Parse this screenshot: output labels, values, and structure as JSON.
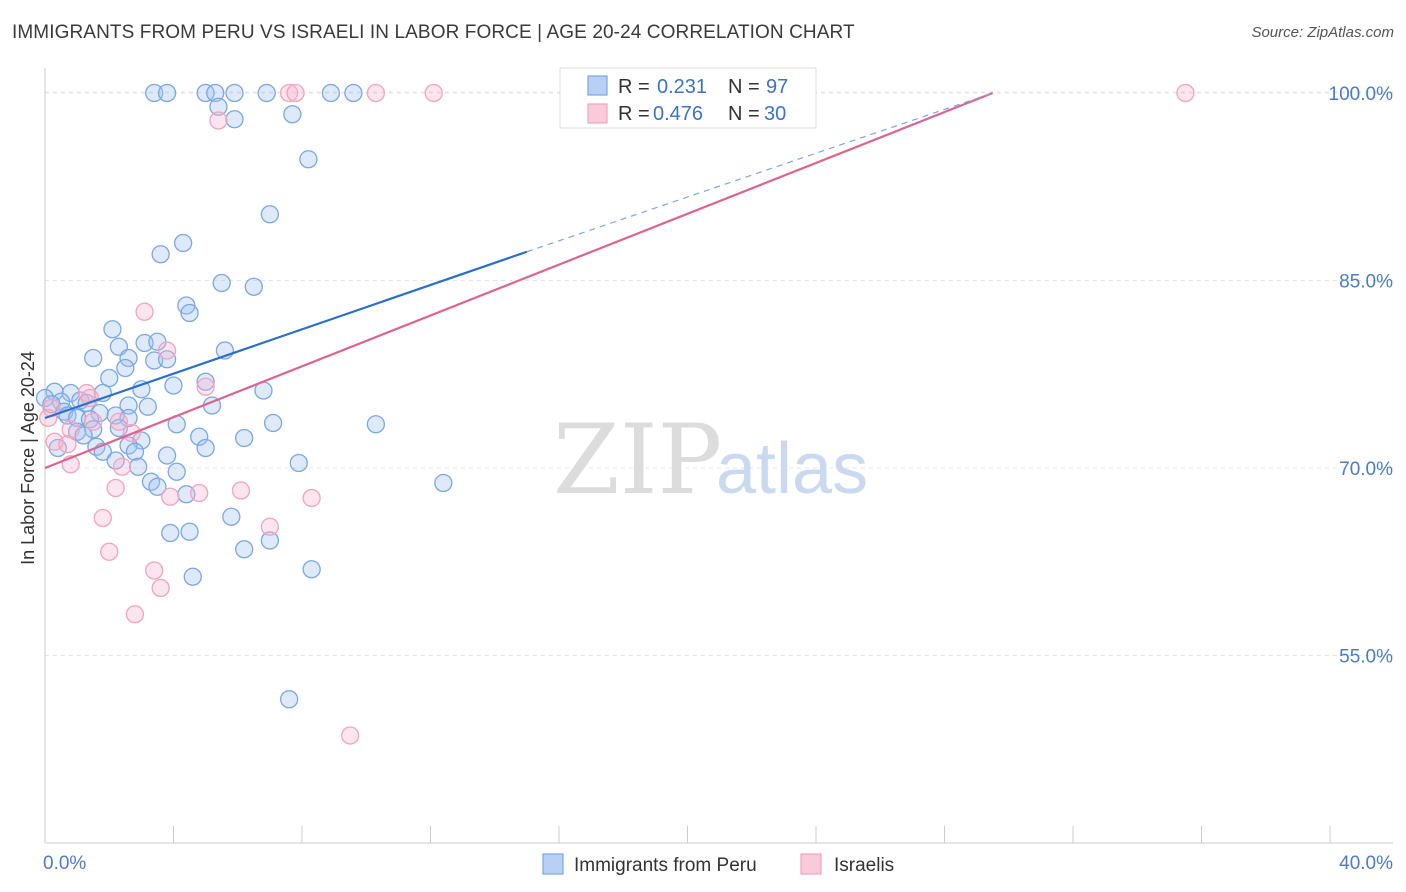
{
  "title": "IMMIGRANTS FROM PERU VS ISRAELI IN LABOR FORCE | AGE 20-24 CORRELATION CHART",
  "source": "Source: ZipAtlas.com",
  "chart_data": {
    "type": "scatter",
    "title": "IMMIGRANTS FROM PERU VS ISRAELI IN LABOR FORCE | AGE 20-24 CORRELATION CHART",
    "xlabel": "",
    "ylabel": "In Labor Force | Age 20-24",
    "xlim": [
      0,
      40
    ],
    "ylim": [
      40,
      102
    ],
    "x_tick_labels": [
      "0.0%",
      "40.0%"
    ],
    "y_ticks": [
      55,
      70,
      85,
      100
    ],
    "y_tick_labels": [
      "55.0%",
      "70.0%",
      "85.0%",
      "100.0%"
    ],
    "grid": true,
    "watermark": [
      "ZIP",
      "atlas"
    ],
    "legend": {
      "entries": [
        {
          "r_label": "R =",
          "r_value": "0.231",
          "n_label": "N =",
          "n_value": "97"
        },
        {
          "r_label": "R =",
          "r_value": "0.476",
          "n_label": "N =",
          "n_value": "30"
        }
      ]
    },
    "series": [
      {
        "name": "Immigrants from Peru",
        "color": "#7aa7e6",
        "line_color": "#2a6fcf",
        "trend": {
          "x0": 0.0,
          "y0": 74.0,
          "x1": 15.0,
          "y1": 87.3,
          "dash_x1": 29.5,
          "dash_y1": 100.0
        },
        "points": [
          [
            3.4,
            100
          ],
          [
            3.8,
            100
          ],
          [
            5.0,
            100
          ],
          [
            5.3,
            100
          ],
          [
            5.9,
            100
          ],
          [
            6.9,
            100
          ],
          [
            8.9,
            100
          ],
          [
            9.6,
            100
          ],
          [
            5.4,
            98.9
          ],
          [
            5.9,
            97.9
          ],
          [
            7.7,
            98.3
          ],
          [
            8.2,
            94.7
          ],
          [
            7.0,
            90.3
          ],
          [
            4.3,
            88.0
          ],
          [
            3.6,
            87.1
          ],
          [
            5.5,
            84.8
          ],
          [
            6.5,
            84.5
          ],
          [
            4.4,
            83.0
          ],
          [
            4.5,
            82.4
          ],
          [
            2.1,
            81.1
          ],
          [
            3.1,
            80.0
          ],
          [
            3.5,
            80.1
          ],
          [
            2.3,
            79.7
          ],
          [
            5.6,
            79.4
          ],
          [
            1.5,
            78.8
          ],
          [
            2.6,
            78.8
          ],
          [
            3.4,
            78.6
          ],
          [
            3.8,
            78.7
          ],
          [
            2.5,
            78.0
          ],
          [
            2.0,
            77.2
          ],
          [
            5.0,
            76.9
          ],
          [
            4.0,
            76.6
          ],
          [
            3.0,
            76.3
          ],
          [
            0.3,
            76.1
          ],
          [
            0.8,
            76.0
          ],
          [
            1.8,
            76.0
          ],
          [
            6.8,
            76.2
          ],
          [
            0.0,
            75.6
          ],
          [
            1.1,
            75.4
          ],
          [
            0.5,
            75.3
          ],
          [
            0.2,
            75.1
          ],
          [
            1.3,
            75.2
          ],
          [
            2.6,
            75.0
          ],
          [
            3.2,
            74.9
          ],
          [
            5.2,
            75.0
          ],
          [
            0.6,
            74.5
          ],
          [
            1.7,
            74.4
          ],
          [
            2.2,
            74.2
          ],
          [
            2.6,
            74.0
          ],
          [
            0.7,
            74.2
          ],
          [
            1.0,
            74.0
          ],
          [
            1.4,
            73.9
          ],
          [
            4.1,
            73.5
          ],
          [
            7.1,
            73.6
          ],
          [
            10.3,
            73.5
          ],
          [
            2.3,
            73.2
          ],
          [
            1.5,
            73.1
          ],
          [
            1.0,
            72.9
          ],
          [
            1.2,
            72.6
          ],
          [
            4.8,
            72.5
          ],
          [
            6.2,
            72.4
          ],
          [
            3.0,
            72.2
          ],
          [
            2.6,
            71.8
          ],
          [
            1.6,
            71.7
          ],
          [
            0.4,
            71.6
          ],
          [
            5.0,
            71.6
          ],
          [
            1.8,
            71.3
          ],
          [
            2.8,
            71.3
          ],
          [
            3.8,
            71.0
          ],
          [
            2.2,
            70.6
          ],
          [
            2.9,
            70.1
          ],
          [
            7.9,
            70.4
          ],
          [
            4.1,
            69.7
          ],
          [
            3.3,
            68.9
          ],
          [
            3.5,
            68.5
          ],
          [
            12.4,
            68.8
          ],
          [
            4.4,
            67.9
          ],
          [
            5.8,
            66.1
          ],
          [
            3.9,
            64.8
          ],
          [
            4.5,
            64.9
          ],
          [
            7.0,
            64.2
          ],
          [
            6.2,
            63.5
          ],
          [
            8.3,
            61.9
          ],
          [
            4.6,
            61.3
          ],
          [
            7.6,
            51.5
          ]
        ]
      },
      {
        "name": "Israelis",
        "color": "#f2a3bd",
        "line_color": "#e0628f",
        "trend": {
          "x0": 0.0,
          "y0": 70.0,
          "x1": 29.5,
          "y1": 100.0
        },
        "points": [
          [
            7.6,
            100
          ],
          [
            7.8,
            100
          ],
          [
            10.3,
            100
          ],
          [
            12.1,
            100
          ],
          [
            35.5,
            100
          ],
          [
            5.4,
            97.8
          ],
          [
            3.1,
            82.5
          ],
          [
            3.8,
            79.4
          ],
          [
            5.0,
            76.5
          ],
          [
            1.3,
            76.0
          ],
          [
            1.4,
            75.6
          ],
          [
            0.2,
            74.8
          ],
          [
            0.1,
            74.0
          ],
          [
            1.5,
            73.7
          ],
          [
            2.3,
            73.7
          ],
          [
            0.8,
            73.1
          ],
          [
            2.7,
            72.8
          ],
          [
            0.3,
            72.1
          ],
          [
            0.7,
            71.9
          ],
          [
            0.8,
            70.3
          ],
          [
            2.4,
            70.1
          ],
          [
            2.2,
            68.4
          ],
          [
            4.8,
            68.0
          ],
          [
            6.1,
            68.2
          ],
          [
            3.9,
            67.7
          ],
          [
            8.3,
            67.6
          ],
          [
            1.8,
            66.0
          ],
          [
            7.0,
            65.3
          ],
          [
            2.0,
            63.3
          ],
          [
            3.4,
            61.8
          ],
          [
            3.6,
            60.4
          ],
          [
            2.8,
            58.3
          ],
          [
            9.5,
            48.6
          ]
        ]
      }
    ]
  }
}
